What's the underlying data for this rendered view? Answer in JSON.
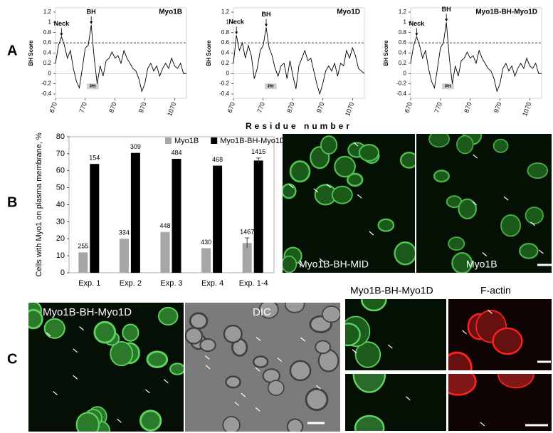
{
  "panel_labels": [
    "A",
    "B",
    "C"
  ],
  "x_axis_label": "Residue number",
  "chart_data": [
    {
      "type": "line",
      "title": "Myo1B",
      "ylabel": "BH Score",
      "x": [
        670,
        680,
        690,
        700,
        710,
        720,
        730,
        740,
        750,
        760,
        770,
        780,
        790,
        800,
        810,
        820,
        830,
        840,
        850,
        860,
        870,
        880,
        890,
        900,
        910,
        920,
        930,
        940,
        950,
        960,
        970,
        980,
        990,
        1000,
        1010,
        1020,
        1030,
        1040,
        1050,
        1060,
        1070,
        1080,
        1090,
        1100,
        1110
      ],
      "series": [
        {
          "color": "#000000",
          "values": [
            0.2,
            0.55,
            0.72,
            0.55,
            0.3,
            0.45,
            0.1,
            -0.15,
            -0.28,
            0.1,
            0.5,
            0.55,
            0.95,
            0.3,
            -0.2,
            0.15,
            -0.05,
            0.25,
            0.3,
            0.42,
            0.3,
            0.35,
            0.2,
            0.45,
            0.3,
            0.2,
            0.1,
            0.05,
            -0.1,
            -0.35,
            -0.2,
            0.1,
            0.2,
            0.05,
            0.15,
            -0.05,
            0.1,
            0.2,
            0.1,
            0.3,
            0.15,
            0.1,
            0.2,
            0,
            0
          ]
        }
      ],
      "xlim": [
        670,
        1110
      ],
      "ylim": [
        -0.4,
        1.2
      ],
      "xticks": [
        670,
        770,
        870,
        970,
        1070
      ],
      "yticks": [
        -0.4,
        -0.2,
        0,
        0.2,
        0.4,
        0.6,
        0.8,
        1,
        1.2
      ],
      "threshold": 0.6,
      "annotations": [
        {
          "text": "Neck",
          "x": 690,
          "y": 0.72
        },
        {
          "text": "BH",
          "x": 790,
          "y": 0.95
        }
      ],
      "domain": {
        "text": "PH",
        "x": [
          775,
          815
        ]
      }
    },
    {
      "type": "line",
      "title": "Myo1D",
      "ylabel": "BH Score",
      "x": [
        670,
        680,
        690,
        700,
        710,
        720,
        730,
        740,
        750,
        760,
        770,
        780,
        790,
        800,
        810,
        820,
        830,
        840,
        850,
        860,
        870,
        880,
        890,
        900,
        910,
        920,
        930,
        940,
        950,
        960,
        970,
        980,
        990,
        1000,
        1010,
        1020,
        1030,
        1040,
        1050,
        1060,
        1070,
        1080,
        1090,
        1100,
        1110
      ],
      "series": [
        {
          "color": "#000000",
          "values": [
            0.2,
            0.75,
            0.45,
            0.6,
            0.3,
            0.55,
            0.35,
            -0.1,
            0.1,
            0.45,
            0.55,
            0.9,
            0.5,
            0.35,
            0.1,
            -0.05,
            0.15,
            0.2,
            -0.1,
            0.25,
            -0.05,
            -0.3,
            0.15,
            0.3,
            0.45,
            0.25,
            0.3,
            0.05,
            -0.2,
            -0.4,
            -0.2,
            0.05,
            0.15,
            0.05,
            0.2,
            -0.05,
            0.2,
            0.15,
            0.45,
            0.3,
            0.5,
            0.35,
            0.1,
            0.05,
            0
          ]
        }
      ],
      "xlim": [
        670,
        1110
      ],
      "ylim": [
        -0.4,
        1.2
      ],
      "xticks": [
        670,
        770,
        870,
        970,
        1070
      ],
      "yticks": [
        -0.4,
        -0.2,
        0,
        0.2,
        0.4,
        0.6,
        0.8,
        1,
        1.2
      ],
      "threshold": 0.6,
      "annotations": [
        {
          "text": "Neck",
          "x": 680,
          "y": 0.75
        },
        {
          "text": "BH",
          "x": 780,
          "y": 0.9
        }
      ],
      "domain": {
        "text": "PH",
        "x": [
          775,
          815
        ]
      }
    },
    {
      "type": "line",
      "title": "Myo1B-BH-Myo1D",
      "ylabel": "BH Score",
      "x": [
        670,
        680,
        690,
        700,
        710,
        720,
        730,
        740,
        750,
        760,
        770,
        780,
        790,
        800,
        810,
        820,
        830,
        840,
        850,
        860,
        870,
        880,
        890,
        900,
        910,
        920,
        930,
        940,
        950,
        960,
        970,
        980,
        990,
        1000,
        1010,
        1020,
        1030,
        1040,
        1050,
        1060,
        1070,
        1080,
        1090,
        1100,
        1110
      ],
      "series": [
        {
          "color": "#000000",
          "values": [
            0.2,
            0.55,
            0.72,
            0.55,
            0.3,
            0.45,
            0.1,
            -0.15,
            -0.28,
            0.1,
            0.5,
            0.6,
            1,
            0.3,
            -0.2,
            0.15,
            -0.05,
            0.25,
            0.3,
            0.42,
            0.3,
            0.35,
            0.2,
            0.45,
            0.3,
            0.2,
            0.1,
            0.05,
            -0.1,
            -0.35,
            -0.2,
            0.1,
            0.2,
            0.05,
            0.15,
            -0.05,
            0.1,
            0.2,
            0.1,
            0.3,
            0.15,
            0.1,
            0.2,
            0,
            0
          ]
        }
      ],
      "xlim": [
        670,
        1110
      ],
      "ylim": [
        -0.4,
        1.2
      ],
      "xticks": [
        670,
        770,
        870,
        970,
        1070
      ],
      "yticks": [
        -0.4,
        -0.2,
        0,
        0.2,
        0.4,
        0.6,
        0.8,
        1,
        1.2
      ],
      "threshold": 0.6,
      "annotations": [
        {
          "text": "Neck",
          "x": 690,
          "y": 0.72
        },
        {
          "text": "BH",
          "x": 790,
          "y": 1
        }
      ],
      "domain": {
        "text": "PH",
        "x": [
          775,
          815
        ]
      }
    },
    {
      "type": "bar",
      "ylabel": "Cells with Myo1 on plasma membrane, %",
      "categories": [
        "Exp. 1",
        "Exp. 2",
        "Exp. 3",
        "Exp. 4",
        "Exp. 1-4"
      ],
      "series": [
        {
          "name": "Myo1B",
          "color": "#a6a6a6",
          "values": [
            12,
            20,
            24,
            14.5,
            17.5
          ],
          "counts": [
            255,
            334,
            448,
            430,
            1467
          ],
          "errors": [
            null,
            null,
            null,
            null,
            3
          ]
        },
        {
          "name": "Myo1B-BH-Myo1D",
          "color": "#000000",
          "values": [
            64,
            70.5,
            67,
            63,
            66
          ],
          "counts": [
            154,
            309,
            484,
            468,
            1415
          ],
          "errors": [
            null,
            null,
            null,
            null,
            1.5
          ]
        }
      ],
      "ylim": [
        0,
        80
      ],
      "yticks": [
        0,
        10,
        20,
        30,
        40,
        50,
        60,
        70,
        80
      ],
      "legend": "top"
    }
  ],
  "images": [
    {
      "label": "Myo1B-BH-MID"
    },
    {
      "label": "Myo1B"
    },
    {
      "label": "Myo1B-BH-Myo1D"
    },
    {
      "label": "DIC"
    }
  ],
  "channel_headers": [
    "Myo1B-BH-Myo1D",
    "F-actin"
  ]
}
